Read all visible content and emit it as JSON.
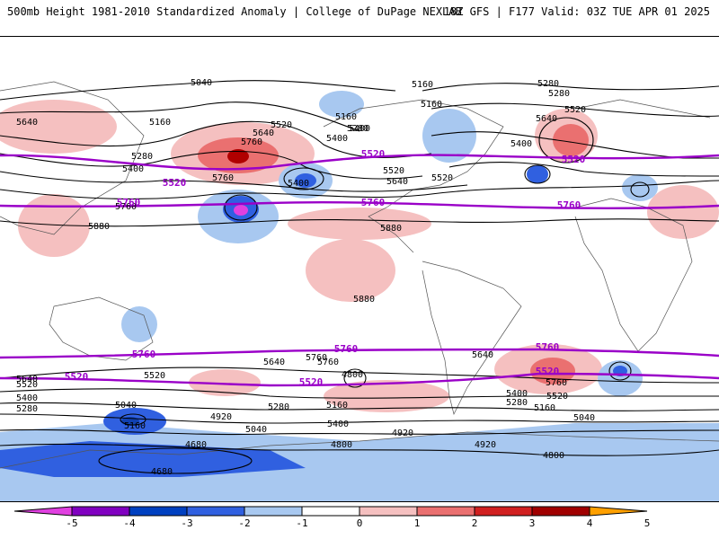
{
  "header": {
    "left_title": "500mb Height 1981-2010 Standardized Anomaly | College of DuPage NEXLAB",
    "right_title": "18Z GFS | F177 Valid: 03Z TUE APR 01 2025"
  },
  "contour_labels": {
    "black": [
      "5040",
      "5160",
      "5160",
      "5280",
      "5520",
      "5160",
      "5280",
      "5400",
      "5640",
      "5520",
      "5640",
      "5400",
      "5280",
      "5400",
      "5760",
      "5400",
      "5640",
      "5760",
      "5520",
      "5400",
      "5520",
      "5640",
      "5160",
      "5280",
      "5760",
      "5880",
      "5880",
      "5880",
      "5760",
      "5640",
      "5520",
      "5760",
      "5520",
      "5640",
      "5400",
      "5280",
      "5160",
      "4920",
      "5040",
      "5280",
      "5160",
      "5400",
      "5040",
      "4920",
      "4800",
      "4680",
      "4800",
      "4680",
      "4920",
      "5400",
      "5280",
      "5160",
      "5520",
      "5760",
      "5640",
      "5040",
      "4800"
    ],
    "purple": [
      "5520",
      "5760",
      "5520",
      "5760",
      "5520",
      "5760",
      "5760",
      "5760",
      "5760",
      "5520",
      "5520",
      "5520"
    ]
  },
  "colorbar": {
    "ticks": [
      "-5",
      "-4",
      "-3",
      "-2",
      "-1",
      "0",
      "1",
      "2",
      "3",
      "4",
      "5"
    ],
    "colors": [
      "#e040e0",
      "#8000c0",
      "#0040c0",
      "#3060e0",
      "#a8c8f0",
      "#ffffff",
      "#f5c0c0",
      "#ea7070",
      "#d02020",
      "#a00000",
      "#ffa000"
    ]
  }
}
